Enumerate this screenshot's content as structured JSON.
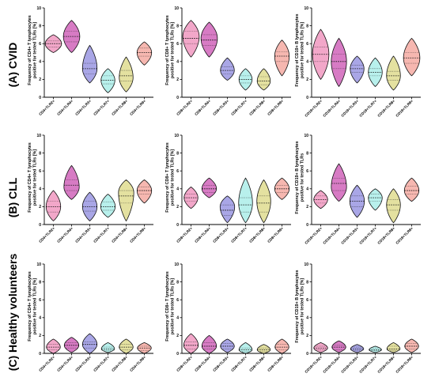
{
  "row_labels": [
    "(A) CVID",
    "(B) CLL",
    "(C)  Healthy volunteers"
  ],
  "colors": [
    "#f2a7c9",
    "#d77bc4",
    "#a9a6e6",
    "#b8f0ec",
    "#e4e1a0",
    "#f6b7b0"
  ],
  "chart_data": [
    {
      "type": "violin",
      "panel_id": "a1",
      "row": 0,
      "col": 0,
      "ylabel": [
        "Frequency of CD4+ T lymphocytes",
        "positive for tested TLRs [%]"
      ],
      "categories": [
        "CD4+TLR2+",
        "CD4+TLR4+",
        "CD4+TLR3+",
        "CD4+TLR7+",
        "CD4+TLR8+",
        "CD4+TLR9+"
      ],
      "ylim": [
        0,
        10
      ],
      "yticks": [
        0,
        2,
        4,
        6,
        8,
        10
      ],
      "series": [
        {
          "name": "CD4+TLR2+",
          "min": 5.0,
          "max": 7.0,
          "median": 6.0,
          "mode": 6.0,
          "width": 0.45,
          "q1": 5.6,
          "q3": 6.3
        },
        {
          "name": "CD4+TLR4+",
          "min": 5.0,
          "max": 8.6,
          "median": 6.8,
          "mode": 6.8,
          "width": 0.45,
          "q1": 6.2,
          "q3": 7.4
        },
        {
          "name": "CD4+TLR3+",
          "min": 1.6,
          "max": 5.8,
          "median": 3.2,
          "mode": 3.2,
          "width": 0.4,
          "q1": 2.6,
          "q3": 3.8
        },
        {
          "name": "CD4+TLR7+",
          "min": 0.5,
          "max": 3.2,
          "median": 1.9,
          "mode": 1.9,
          "width": 0.38,
          "q1": 1.5,
          "q3": 2.4
        },
        {
          "name": "CD4+TLR8+",
          "min": 0.6,
          "max": 4.5,
          "median": 2.4,
          "mode": 2.2,
          "width": 0.38,
          "q1": 1.8,
          "q3": 3.0
        },
        {
          "name": "CD4+TLR9+",
          "min": 3.6,
          "max": 6.2,
          "median": 5.0,
          "mode": 5.0,
          "width": 0.4,
          "q1": 4.6,
          "q3": 5.5
        }
      ]
    },
    {
      "type": "violin",
      "panel_id": "a2",
      "row": 0,
      "col": 1,
      "ylabel": [
        "Frequency of CD8+ T lymphocytes",
        "positive for tested TLRs [%]"
      ],
      "categories": [
        "CD8+TLR2+",
        "CD8+TLR4+",
        "CD8+TLR3+",
        "CD8+TLR7+",
        "CD8+TLR8+",
        "CD8+TLR9+"
      ],
      "ylim": [
        0,
        10
      ],
      "yticks": [
        0,
        2,
        4,
        6,
        8,
        10
      ],
      "series": [
        {
          "name": "CD8+TLR2+",
          "min": 4.5,
          "max": 8.6,
          "median": 6.6,
          "mode": 6.8,
          "width": 0.45,
          "q1": 6.0,
          "q3": 7.4
        },
        {
          "name": "CD8+TLR4+",
          "min": 4.5,
          "max": 8.4,
          "median": 6.4,
          "mode": 6.6,
          "width": 0.45,
          "q1": 5.8,
          "q3": 7.0
        },
        {
          "name": "CD8+TLR3+",
          "min": 1.9,
          "max": 4.4,
          "median": 3.0,
          "mode": 3.0,
          "width": 0.38,
          "q1": 2.6,
          "q3": 3.4
        },
        {
          "name": "CD8+TLR7+",
          "min": 0.8,
          "max": 3.2,
          "median": 2.0,
          "mode": 2.0,
          "width": 0.36,
          "q1": 1.6,
          "q3": 2.4
        },
        {
          "name": "CD8+TLR8+",
          "min": 0.8,
          "max": 3.2,
          "median": 1.8,
          "mode": 1.8,
          "width": 0.36,
          "q1": 1.4,
          "q3": 2.3
        },
        {
          "name": "CD8+TLR9+",
          "min": 2.4,
          "max": 6.4,
          "median": 4.6,
          "mode": 4.6,
          "width": 0.4,
          "q1": 4.0,
          "q3": 5.1
        }
      ]
    },
    {
      "type": "violin",
      "panel_id": "a3",
      "row": 0,
      "col": 2,
      "ylabel": [
        "Frequency of CD19+ B lymphocytes",
        "positive for tested TLRs [%]"
      ],
      "categories": [
        "CD19+TLR2+",
        "CD19+TLR4+",
        "CD19+TLR3+",
        "CD19+TLR7+",
        "CD19+TLR8+",
        "CD19+TLR9+"
      ],
      "ylim": [
        0,
        10
      ],
      "yticks": [
        0,
        2,
        4,
        6,
        8,
        10
      ],
      "series": [
        {
          "name": "CD19+TLR2+",
          "min": 2.0,
          "max": 7.6,
          "median": 4.8,
          "mode": 4.8,
          "width": 0.45,
          "q1": 4.0,
          "q3": 5.6
        },
        {
          "name": "CD19+TLR4+",
          "min": 1.2,
          "max": 6.6,
          "median": 4.0,
          "mode": 4.0,
          "width": 0.42,
          "q1": 3.2,
          "q3": 4.8
        },
        {
          "name": "CD19+TLR3+",
          "min": 1.6,
          "max": 4.6,
          "median": 3.2,
          "mode": 3.2,
          "width": 0.38,
          "q1": 2.8,
          "q3": 3.6
        },
        {
          "name": "CD19+TLR7+",
          "min": 1.2,
          "max": 4.4,
          "median": 2.8,
          "mode": 2.8,
          "width": 0.38,
          "q1": 2.4,
          "q3": 3.2
        },
        {
          "name": "CD19+TLR8+",
          "min": 0.8,
          "max": 4.6,
          "median": 2.4,
          "mode": 2.4,
          "width": 0.38,
          "q1": 1.9,
          "q3": 2.9
        },
        {
          "name": "CD19+TLR9+",
          "min": 2.4,
          "max": 6.6,
          "median": 4.4,
          "mode": 4.4,
          "width": 0.45,
          "q1": 3.8,
          "q3": 5.0
        }
      ]
    },
    {
      "type": "violin",
      "panel_id": "b1",
      "row": 1,
      "col": 0,
      "ylabel": [
        "Frequency of CD4+ T lymphocytes",
        "positive for tested TLRs [%]"
      ],
      "categories": [
        "CD4+TLR2+",
        "CD4+TLR4+",
        "CD4+TLR3+",
        "CD4+TLR7+",
        "CD4+TLR8+",
        "CD4+TLR9+"
      ],
      "ylim": [
        0,
        10
      ],
      "yticks": [
        0,
        2,
        4,
        6,
        8,
        10
      ],
      "series": [
        {
          "name": "CD4+TLR2+",
          "min": 0.4,
          "max": 3.8,
          "median": 2.0,
          "mode": 2.0,
          "width": 0.4,
          "q1": 1.4,
          "q3": 2.6
        },
        {
          "name": "CD4+TLR4+",
          "min": 2.8,
          "max": 6.6,
          "median": 4.4,
          "mode": 4.2,
          "width": 0.42,
          "q1": 3.8,
          "q3": 5.0
        },
        {
          "name": "CD4+TLR3+",
          "min": 0.4,
          "max": 3.6,
          "median": 2.0,
          "mode": 2.0,
          "width": 0.4,
          "q1": 1.5,
          "q3": 2.6
        },
        {
          "name": "CD4+TLR7+",
          "min": 0.8,
          "max": 3.4,
          "median": 2.0,
          "mode": 2.0,
          "width": 0.4,
          "q1": 1.6,
          "q3": 2.5
        },
        {
          "name": "CD4+TLR8+",
          "min": 0.4,
          "max": 5.0,
          "median": 3.2,
          "mode": 3.6,
          "width": 0.42,
          "q1": 2.4,
          "q3": 3.8
        },
        {
          "name": "CD4+TLR9+",
          "min": 2.4,
          "max": 5.0,
          "median": 3.8,
          "mode": 3.8,
          "width": 0.4,
          "q1": 3.4,
          "q3": 4.2
        }
      ]
    },
    {
      "type": "violin",
      "panel_id": "b2",
      "row": 1,
      "col": 1,
      "ylabel": [
        "Frequency of CD8+ T lymphocytes",
        "positive for tested TLRs [%]"
      ],
      "categories": [
        "CD8+TLR2+",
        "CD8+TLR4+",
        "CD8+TLR3+",
        "CD8+TLR7+",
        "CD8+TLR8+",
        "CD8+TLR9+"
      ],
      "ylim": [
        0,
        10
      ],
      "yticks": [
        0,
        2,
        4,
        6,
        8,
        10
      ],
      "series": [
        {
          "name": "CD8+TLR2+",
          "min": 1.8,
          "max": 4.2,
          "median": 3.0,
          "mode": 3.0,
          "width": 0.38,
          "q1": 2.6,
          "q3": 3.4
        },
        {
          "name": "CD8+TLR4+",
          "min": 3.0,
          "max": 5.2,
          "median": 4.0,
          "mode": 4.0,
          "width": 0.4,
          "q1": 3.6,
          "q3": 4.4
        },
        {
          "name": "CD8+TLR3+",
          "min": 0.2,
          "max": 3.2,
          "median": 1.6,
          "mode": 2.0,
          "width": 0.4,
          "q1": 1.0,
          "q3": 2.2
        },
        {
          "name": "CD8+TLR7+",
          "min": 0.2,
          "max": 5.2,
          "median": 2.2,
          "mode": 2.4,
          "width": 0.38,
          "q1": 1.4,
          "q3": 3.0
        },
        {
          "name": "CD8+TLR8+",
          "min": 0.2,
          "max": 5.0,
          "median": 2.4,
          "mode": 2.6,
          "width": 0.38,
          "q1": 1.4,
          "q3": 3.2
        },
        {
          "name": "CD8+TLR9+",
          "min": 2.8,
          "max": 5.2,
          "median": 4.0,
          "mode": 4.0,
          "width": 0.4,
          "q1": 3.6,
          "q3": 4.4
        }
      ]
    },
    {
      "type": "violin",
      "panel_id": "b3",
      "row": 1,
      "col": 2,
      "ylabel": [
        "Frequency of CD19+ B lymphocytes",
        "positive for tested TLRs"
      ],
      "categories": [
        "CD19+TLR2+",
        "CD19+TLR4+",
        "CD19+TLR3+",
        "CD19+TLR7+",
        "CD19+TLR8+",
        "CD19+TLR9+"
      ],
      "ylim": [
        0,
        10
      ],
      "yticks": [
        0,
        2,
        4,
        6,
        8,
        10
      ],
      "series": [
        {
          "name": "CD19+TLR2+",
          "min": 1.8,
          "max": 3.8,
          "median": 2.8,
          "mode": 2.8,
          "width": 0.38,
          "q1": 2.4,
          "q3": 3.2
        },
        {
          "name": "CD19+TLR4+",
          "min": 2.6,
          "max": 6.8,
          "median": 4.6,
          "mode": 4.2,
          "width": 0.42,
          "q1": 3.8,
          "q3": 5.2
        },
        {
          "name": "CD19+TLR3+",
          "min": 0.8,
          "max": 4.4,
          "median": 2.6,
          "mode": 2.6,
          "width": 0.4,
          "q1": 2.0,
          "q3": 3.2
        },
        {
          "name": "CD19+TLR7+",
          "min": 1.6,
          "max": 4.0,
          "median": 3.0,
          "mode": 3.0,
          "width": 0.38,
          "q1": 2.6,
          "q3": 3.4
        },
        {
          "name": "CD19+TLR8+",
          "min": 0.2,
          "max": 4.0,
          "median": 2.2,
          "mode": 2.2,
          "width": 0.38,
          "q1": 1.6,
          "q3": 2.8
        },
        {
          "name": "CD19+TLR9+",
          "min": 2.6,
          "max": 5.2,
          "median": 3.8,
          "mode": 3.8,
          "width": 0.4,
          "q1": 3.4,
          "q3": 4.3
        }
      ]
    },
    {
      "type": "violin",
      "panel_id": "c1",
      "row": 2,
      "col": 0,
      "ylabel": [
        "Frequency of CD4+ T lymphocytes",
        "positive for tested TLRs [%]"
      ],
      "categories": [
        "CD4+TLR2+",
        "CD4+TLR4+",
        "CD4+TLR3+",
        "CD4+TLR7+",
        "CD4+TLR8+",
        "CD4+TLR9+"
      ],
      "ylim": [
        0,
        10
      ],
      "yticks": [
        0,
        2,
        4,
        6,
        8,
        10
      ],
      "series": [
        {
          "name": "CD4+TLR2+",
          "min": 0.0,
          "max": 1.6,
          "median": 0.7,
          "mode": 0.7,
          "width": 0.38,
          "q1": 0.4,
          "q3": 1.0
        },
        {
          "name": "CD4+TLR4+",
          "min": 0.1,
          "max": 1.8,
          "median": 0.9,
          "mode": 0.9,
          "width": 0.4,
          "q1": 0.6,
          "q3": 1.2
        },
        {
          "name": "CD4+TLR3+",
          "min": 0.0,
          "max": 2.2,
          "median": 1.0,
          "mode": 1.0,
          "width": 0.4,
          "q1": 0.6,
          "q3": 1.3
        },
        {
          "name": "CD4+TLR7+",
          "min": 0.1,
          "max": 1.2,
          "median": 0.5,
          "mode": 0.5,
          "width": 0.36,
          "q1": 0.3,
          "q3": 0.7
        },
        {
          "name": "CD4+TLR8+",
          "min": 0.0,
          "max": 1.6,
          "median": 0.7,
          "mode": 0.7,
          "width": 0.38,
          "q1": 0.4,
          "q3": 1.0
        },
        {
          "name": "CD4+TLR9+",
          "min": 0.0,
          "max": 1.2,
          "median": 0.6,
          "mode": 0.6,
          "width": 0.38,
          "q1": 0.3,
          "q3": 0.8
        }
      ]
    },
    {
      "type": "violin",
      "panel_id": "c2",
      "row": 2,
      "col": 1,
      "ylabel": [
        "Frequency of CD8+ T lymphocytes",
        "positive for tested TLRs [%]"
      ],
      "categories": [
        "CD8+TLR2+",
        "CD8+TLR4+",
        "CD8+TLR3+",
        "CD8+TLR7+",
        "CD8+TLR8+",
        "CD8+TLR9+"
      ],
      "ylim": [
        0,
        10
      ],
      "yticks": [
        0,
        2,
        4,
        6,
        8,
        10
      ],
      "series": [
        {
          "name": "CD8+TLR2+",
          "min": 0.0,
          "max": 2.2,
          "median": 0.9,
          "mode": 0.9,
          "width": 0.4,
          "q1": 0.5,
          "q3": 1.3
        },
        {
          "name": "CD8+TLR4+",
          "min": 0.0,
          "max": 2.0,
          "median": 0.8,
          "mode": 0.8,
          "width": 0.4,
          "q1": 0.5,
          "q3": 1.2
        },
        {
          "name": "CD8+TLR3+",
          "min": 0.1,
          "max": 1.6,
          "median": 0.8,
          "mode": 0.8,
          "width": 0.38,
          "q1": 0.5,
          "q3": 1.1
        },
        {
          "name": "CD8+TLR7+",
          "min": 0.0,
          "max": 1.2,
          "median": 0.4,
          "mode": 0.4,
          "width": 0.36,
          "q1": 0.2,
          "q3": 0.6
        },
        {
          "name": "CD8+TLR8+",
          "min": 0.0,
          "max": 1.0,
          "median": 0.4,
          "mode": 0.4,
          "width": 0.36,
          "q1": 0.2,
          "q3": 0.6
        },
        {
          "name": "CD8+TLR9+",
          "min": 0.0,
          "max": 1.6,
          "median": 0.7,
          "mode": 0.7,
          "width": 0.38,
          "q1": 0.4,
          "q3": 1.0
        }
      ]
    },
    {
      "type": "violin",
      "panel_id": "c3",
      "row": 2,
      "col": 2,
      "ylabel": [
        "Frequency of CD19+ B lymphocytes",
        "positive for tested TLRs [%]"
      ],
      "categories": [
        "CD19+TLR2+",
        "CD19+TLR4+",
        "CD19+TLR3+",
        "CD19+TLR7+",
        "CD19+TLR8+",
        "CD19+TLR9+"
      ],
      "ylim": [
        0,
        10
      ],
      "yticks": [
        0,
        2,
        4,
        6,
        8,
        10
      ],
      "series": [
        {
          "name": "CD19+TLR2+",
          "min": 0.1,
          "max": 1.2,
          "median": 0.6,
          "mode": 0.6,
          "width": 0.38,
          "q1": 0.4,
          "q3": 0.8
        },
        {
          "name": "CD19+TLR4+",
          "min": 0.1,
          "max": 1.4,
          "median": 0.7,
          "mode": 0.7,
          "width": 0.38,
          "q1": 0.4,
          "q3": 0.9
        },
        {
          "name": "CD19+TLR3+",
          "min": 0.1,
          "max": 1.0,
          "median": 0.5,
          "mode": 0.5,
          "width": 0.36,
          "q1": 0.3,
          "q3": 0.7
        },
        {
          "name": "CD19+TLR7+",
          "min": 0.1,
          "max": 0.8,
          "median": 0.4,
          "mode": 0.4,
          "width": 0.34,
          "q1": 0.3,
          "q3": 0.6
        },
        {
          "name": "CD19+TLR8+",
          "min": 0.1,
          "max": 1.2,
          "median": 0.5,
          "mode": 0.5,
          "width": 0.36,
          "q1": 0.3,
          "q3": 0.8
        },
        {
          "name": "CD19+TLR9+",
          "min": 0.1,
          "max": 1.6,
          "median": 0.8,
          "mode": 0.8,
          "width": 0.38,
          "q1": 0.5,
          "q3": 1.1
        }
      ]
    }
  ]
}
